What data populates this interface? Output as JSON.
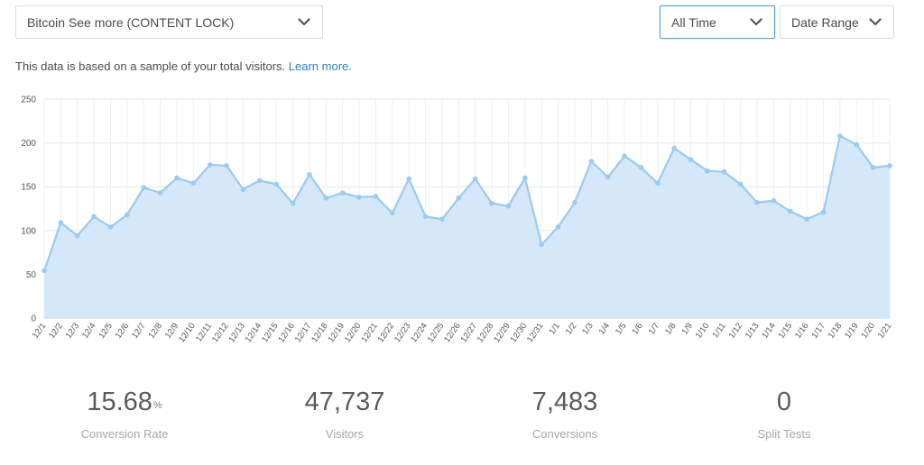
{
  "filters": {
    "campaign": "Bitcoin See more (CONTENT LOCK)",
    "time": "All Time",
    "date_range": "Date Range"
  },
  "notice": {
    "text": "This data is based on a sample of your total visitors.",
    "link": "Learn more."
  },
  "colors": {
    "line": "#9ccaf0",
    "fill": "#d4e8f9",
    "grid": "#e6e6e6",
    "accent": "#2f7fc1"
  },
  "chart_data": {
    "type": "area",
    "x": [
      "12/1",
      "12/2",
      "12/3",
      "12/4",
      "12/5",
      "12/6",
      "12/7",
      "12/8",
      "12/9",
      "12/10",
      "12/11",
      "12/12",
      "12/13",
      "12/14",
      "12/15",
      "12/16",
      "12/17",
      "12/18",
      "12/19",
      "12/20",
      "12/21",
      "12/22",
      "12/23",
      "12/24",
      "12/25",
      "12/26",
      "12/27",
      "12/28",
      "12/29",
      "12/30",
      "12/31",
      "1/1",
      "1/2",
      "1/3",
      "1/4",
      "1/5",
      "1/6",
      "1/7",
      "1/8",
      "1/9",
      "1/10",
      "1/11",
      "1/12",
      "1/13",
      "1/14",
      "1/15",
      "1/16",
      "1/17",
      "1/18",
      "1/19",
      "1/20",
      "1/21"
    ],
    "values": [
      54,
      109,
      94,
      116,
      104,
      118,
      149,
      143,
      160,
      154,
      175,
      174,
      147,
      157,
      153,
      131,
      164,
      137,
      143,
      138,
      139,
      120,
      159,
      116,
      113,
      137,
      159,
      131,
      128,
      160,
      84,
      104,
      132,
      179,
      161,
      185,
      172,
      154,
      194,
      181,
      168,
      167,
      153,
      132,
      134,
      122,
      113,
      121,
      208,
      198,
      172,
      174
    ],
    "ylim": [
      0,
      250
    ],
    "yticks": [
      0,
      50,
      100,
      150,
      200,
      250
    ],
    "grid": true
  },
  "stats": [
    {
      "value": "15.68",
      "suffix": "%",
      "label": "Conversion Rate"
    },
    {
      "value": "47,737",
      "suffix": "",
      "label": "Visitors"
    },
    {
      "value": "7,483",
      "suffix": "",
      "label": "Conversions"
    },
    {
      "value": "0",
      "suffix": "",
      "label": "Split Tests"
    }
  ]
}
